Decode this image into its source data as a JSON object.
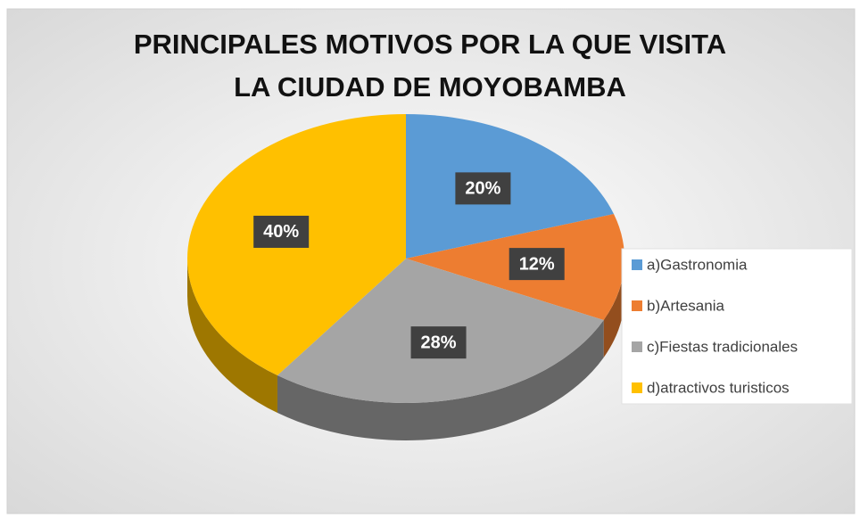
{
  "chart_data": {
    "type": "pie",
    "title": "PRINCIPALES MOTIVOS POR LA QUE VISITA LA CIUDAD DE MOYOBAMBA",
    "categories": [
      "a)Gastronomia",
      "b)Artesania",
      "c)Fiestas tradicionales",
      "d)atractivos turisticos"
    ],
    "values": [
      20,
      12,
      28,
      40
    ],
    "value_labels": [
      "20%",
      "12%",
      "28%",
      "40%"
    ],
    "colors": [
      "#5b9bd5",
      "#ed7d31",
      "#a5a5a5",
      "#ffc000"
    ],
    "legend": "right"
  }
}
